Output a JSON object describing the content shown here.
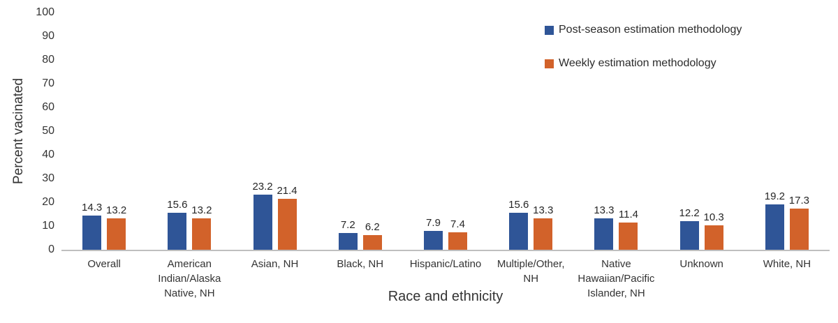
{
  "chart_data": {
    "type": "bar",
    "title": "",
    "xlabel": "Race and ethnicity",
    "ylabel": "Percent vacinated",
    "ylim": [
      0,
      100
    ],
    "ytick_step": 10,
    "grid": false,
    "legend_position": "top-right",
    "categories": [
      "Overall",
      "American Indian/Alaska Native, NH",
      "Asian, NH",
      "Black, NH",
      "Hispanic/Latino",
      "Multiple/Other, NH",
      "Native Hawaiian/Pacific Islander, NH",
      "Unknown",
      "White, NH"
    ],
    "series": [
      {
        "name": "Post-season estimation methodology",
        "color": "#2F5597",
        "values": [
          14.3,
          15.6,
          23.2,
          7.2,
          7.9,
          15.6,
          13.3,
          12.2,
          19.2
        ]
      },
      {
        "name": "Weekly estimation methodology",
        "color": "#D2622A",
        "values": [
          13.2,
          13.2,
          21.4,
          6.2,
          7.4,
          13.3,
          11.4,
          10.3,
          17.3
        ]
      }
    ]
  },
  "colors": {
    "axis_line": "#BFBFBF",
    "text": "#333333"
  }
}
